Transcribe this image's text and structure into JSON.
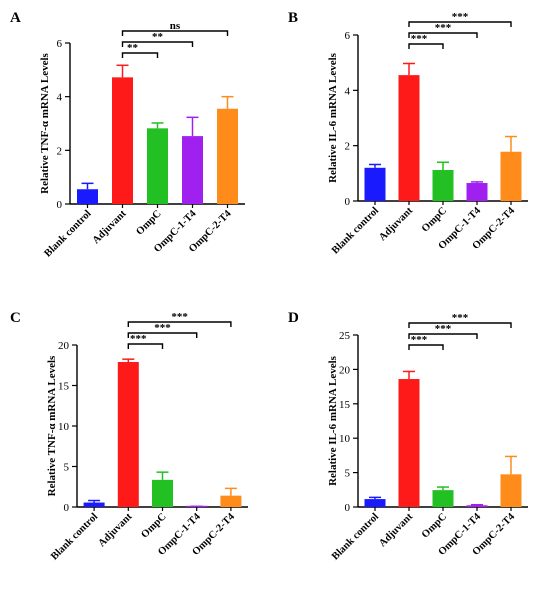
{
  "chart_data": [
    {
      "type": "bar",
      "panel": "A",
      "ylabel": "Relative TNF-α mRNA Levels",
      "categories": [
        "Blank control",
        "Adjuvant",
        "OmpC",
        "OmpC-1-T4",
        "OmpC-2-T4"
      ],
      "values": [
        0.55,
        4.72,
        2.82,
        2.53,
        3.55
      ],
      "errors": [
        0.22,
        0.45,
        0.2,
        0.7,
        0.45
      ],
      "colors": [
        "#1a1aff",
        "#ff1a1a",
        "#22c022",
        "#a020f0",
        "#ff8c1a"
      ],
      "ylim": [
        0,
        6
      ],
      "yticks": [
        0,
        2,
        4,
        6
      ],
      "significance": [
        {
          "from": 1,
          "to": 2,
          "label": "**"
        },
        {
          "from": 1,
          "to": 3,
          "label": "**"
        },
        {
          "from": 1,
          "to": 4,
          "label": "ns"
        }
      ]
    },
    {
      "type": "bar",
      "panel": "B",
      "ylabel": "Relative IL-6 mRNA Levels",
      "categories": [
        "Blank control",
        "Adjuvant",
        "OmpC",
        "OmpC-1-T4",
        "OmpC-2-T4"
      ],
      "values": [
        1.2,
        4.55,
        1.12,
        0.65,
        1.78
      ],
      "errors": [
        0.12,
        0.42,
        0.28,
        0.04,
        0.55
      ],
      "colors": [
        "#1a1aff",
        "#ff1a1a",
        "#22c022",
        "#a020f0",
        "#ff8c1a"
      ],
      "ylim": [
        0,
        6
      ],
      "yticks": [
        0,
        2,
        4,
        6
      ],
      "significance": [
        {
          "from": 1,
          "to": 2,
          "label": "***"
        },
        {
          "from": 1,
          "to": 3,
          "label": "***"
        },
        {
          "from": 1,
          "to": 4,
          "label": "***"
        }
      ]
    },
    {
      "type": "bar",
      "panel": "C",
      "ylabel": "Relative TNF-α mRNA Levels",
      "categories": [
        "Blank control",
        "Adjuvant",
        "OmpC",
        "OmpC-1-T4",
        "OmpC-2-T4"
      ],
      "values": [
        0.55,
        17.9,
        3.35,
        0.05,
        1.4
      ],
      "errors": [
        0.25,
        0.35,
        0.95,
        0.03,
        0.9
      ],
      "colors": [
        "#1a1aff",
        "#ff1a1a",
        "#22c022",
        "#a020f0",
        "#ff8c1a"
      ],
      "ylim": [
        0,
        20
      ],
      "yticks": [
        0,
        5,
        10,
        15,
        20
      ],
      "significance": [
        {
          "from": 1,
          "to": 2,
          "label": "***"
        },
        {
          "from": 1,
          "to": 3,
          "label": "***"
        },
        {
          "from": 1,
          "to": 4,
          "label": "***"
        }
      ]
    },
    {
      "type": "bar",
      "panel": "D",
      "ylabel": "Relative IL-6 mRNA Levels",
      "categories": [
        "Blank control",
        "Adjuvant",
        "OmpC",
        "OmpC-1-T4",
        "OmpC-2-T4"
      ],
      "values": [
        1.15,
        18.6,
        2.45,
        0.25,
        4.75
      ],
      "errors": [
        0.25,
        1.1,
        0.45,
        0.08,
        2.6
      ],
      "colors": [
        "#1a1aff",
        "#ff1a1a",
        "#22c022",
        "#a020f0",
        "#ff8c1a"
      ],
      "ylim": [
        0,
        25
      ],
      "yticks": [
        0,
        5,
        10,
        15,
        20,
        25
      ],
      "significance": [
        {
          "from": 1,
          "to": 2,
          "label": "***"
        },
        {
          "from": 1,
          "to": 3,
          "label": "***"
        },
        {
          "from": 1,
          "to": 4,
          "label": "***"
        }
      ]
    }
  ]
}
